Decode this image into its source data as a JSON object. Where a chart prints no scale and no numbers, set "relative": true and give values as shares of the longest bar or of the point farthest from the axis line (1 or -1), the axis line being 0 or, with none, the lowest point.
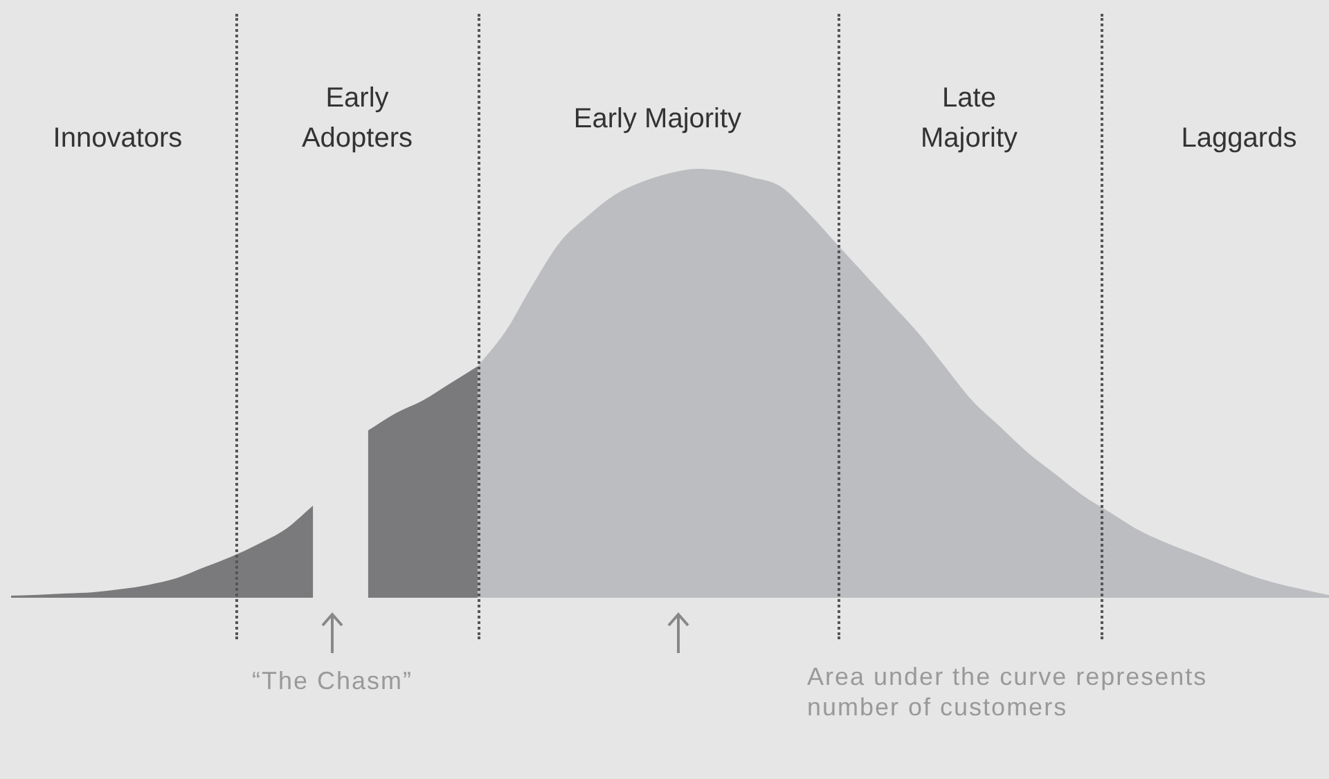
{
  "chart_data": {
    "type": "area",
    "relative": true,
    "legend": false,
    "categories": [
      null,
      null,
      null,
      null,
      null,
      null,
      null,
      null,
      null,
      null,
      null,
      null,
      null,
      null,
      null,
      null,
      null,
      null,
      null,
      null,
      null,
      null,
      null,
      null,
      null,
      null,
      null,
      null,
      null,
      null,
      null,
      null,
      null,
      null,
      null,
      null,
      null,
      null,
      null,
      null,
      null,
      null,
      null,
      null,
      null,
      null,
      null,
      null,
      null
    ],
    "series": [
      {
        "color": "#7a7a7c",
        "values": [
          0.005,
          0.007,
          0.01,
          0.013,
          0.02,
          0.03,
          0.045,
          0.07,
          0.095,
          0.125,
          0.16,
          0.215,
          null,
          0.39,
          0.43,
          0.46,
          0.5,
          0.54,
          null,
          null,
          null,
          null,
          null,
          null,
          null,
          null,
          null,
          null,
          null,
          null,
          null,
          null,
          null,
          null,
          null,
          null,
          null,
          null,
          null,
          null,
          null,
          null,
          null,
          null,
          null,
          null,
          null,
          null,
          null
        ]
      },
      {
        "color": "#bcbdc0",
        "values": [
          null,
          null,
          null,
          null,
          null,
          null,
          null,
          null,
          null,
          null,
          null,
          null,
          null,
          null,
          null,
          null,
          null,
          0.54,
          0.62,
          0.73,
          0.83,
          0.89,
          0.94,
          0.97,
          0.99,
          1,
          0.995,
          0.98,
          0.96,
          0.9,
          0.83,
          0.76,
          0.69,
          0.62,
          0.54,
          0.46,
          0.4,
          0.34,
          0.29,
          0.24,
          0.2,
          0.16,
          0.13,
          0.105,
          0.08,
          0.055,
          0.035,
          0.02,
          0.006
        ]
      }
    ],
    "annotations": [
      "Innovators",
      "Early Adopters",
      "Early Majority",
      "Late Majority",
      "Laggards",
      "“The Chasm”",
      "Area under the curve represents number of customers"
    ]
  }
}
